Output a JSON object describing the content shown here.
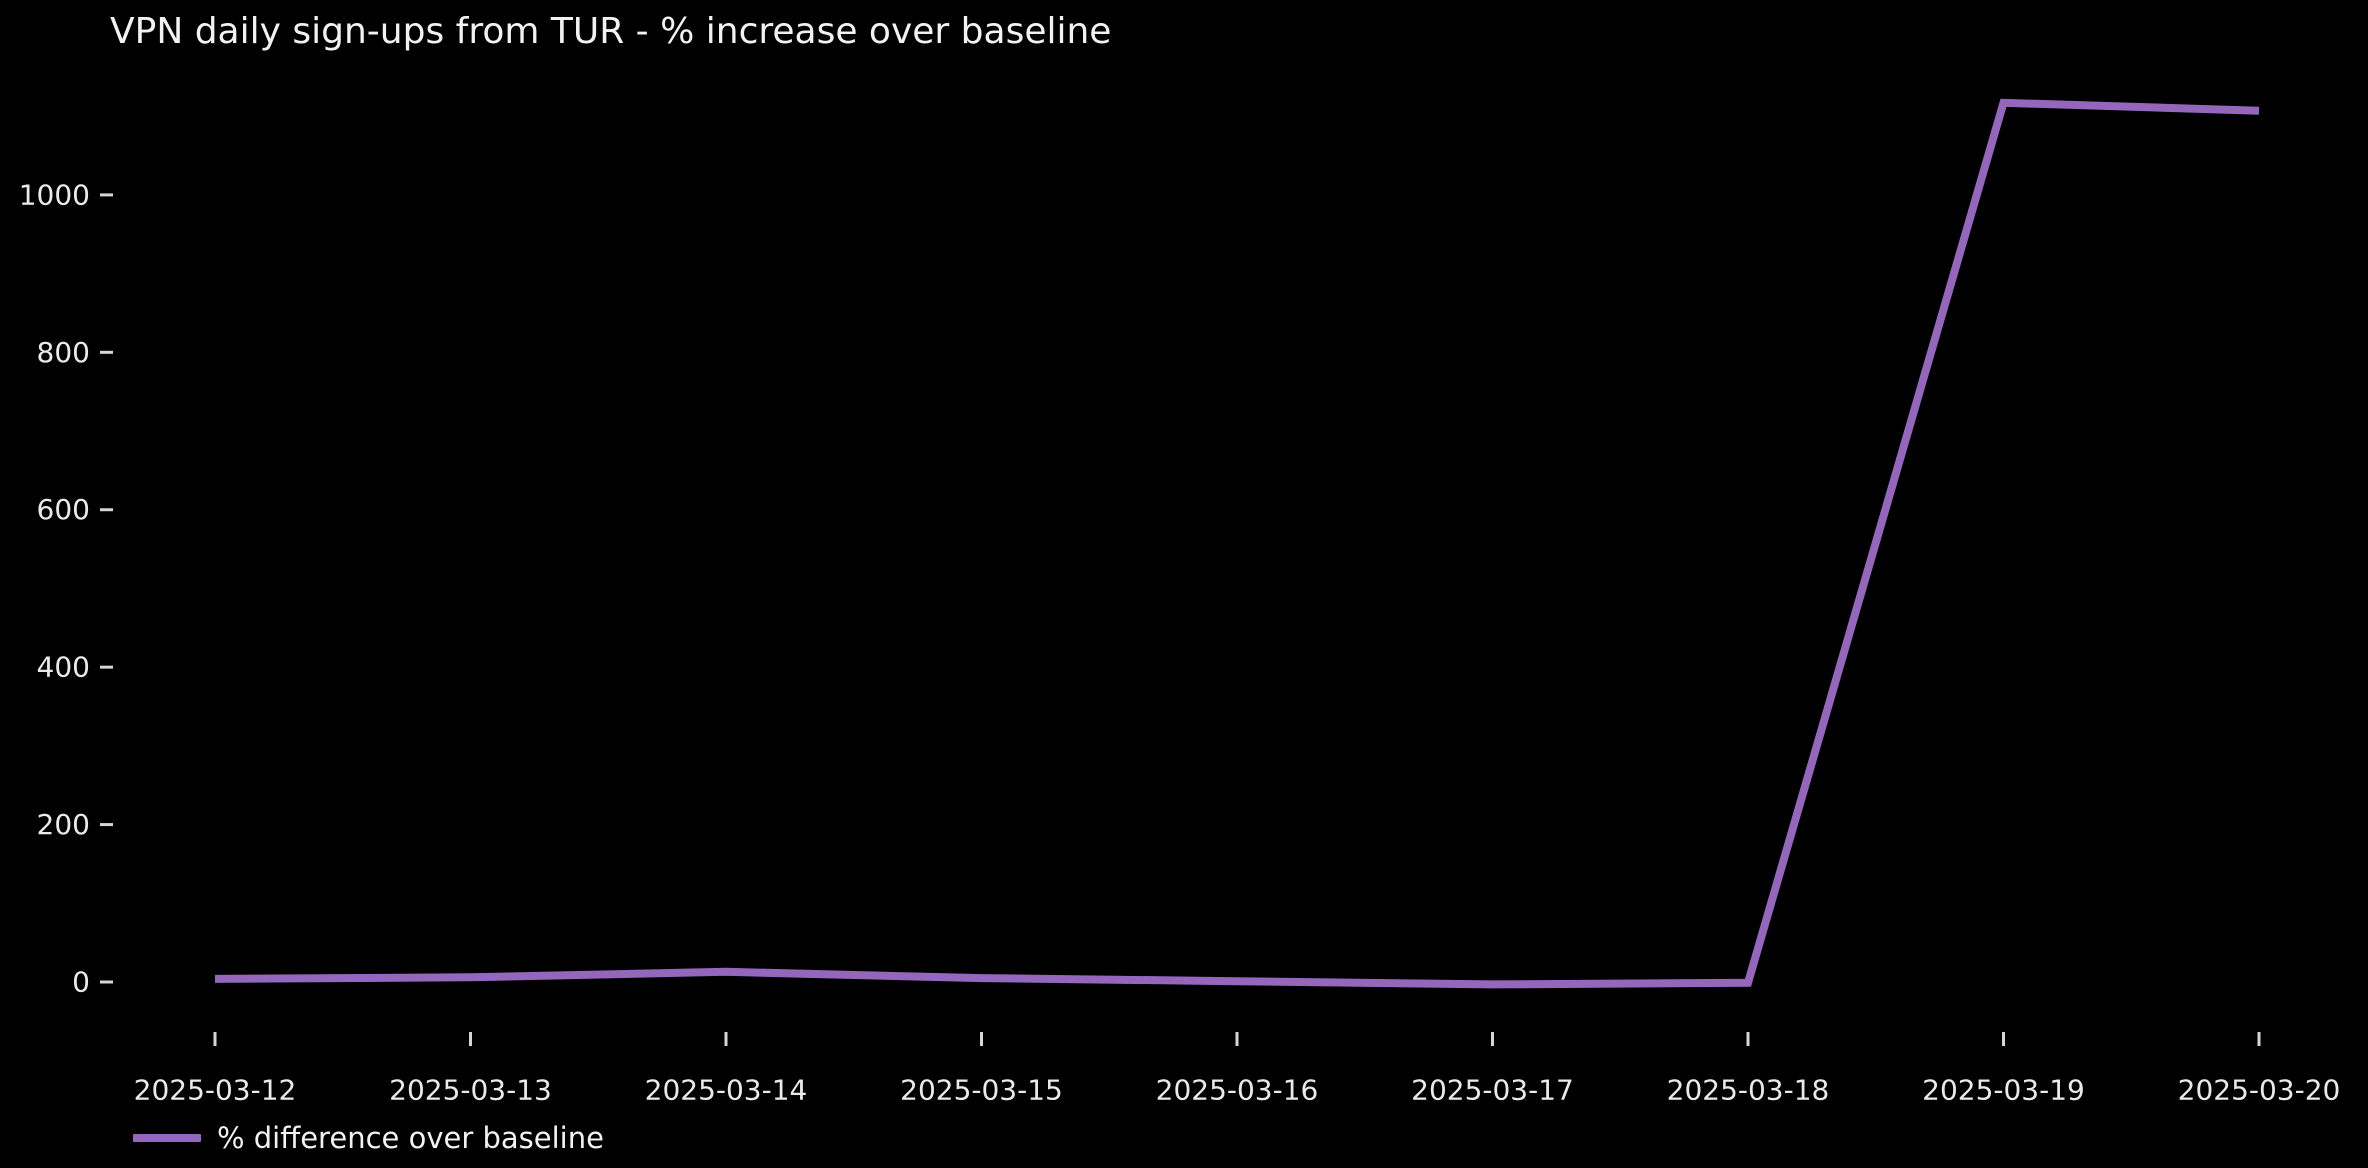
{
  "title": "VPN daily sign-ups from TUR - % increase over baseline",
  "legend": {
    "label": "% difference over baseline"
  },
  "colors": {
    "background": "#000000",
    "text": "#f2f2f2",
    "tick": "#d6d6d6",
    "line": "#9467bd"
  },
  "chart_data": {
    "type": "line",
    "title": "VPN daily sign-ups from TUR - % increase over baseline",
    "x": [
      "2025-03-12",
      "2025-03-13",
      "2025-03-14",
      "2025-03-15",
      "2025-03-16",
      "2025-03-17",
      "2025-03-18",
      "2025-03-19",
      "2025-03-20"
    ],
    "series": [
      {
        "name": "% difference over baseline",
        "color": "#9467bd",
        "values": [
          4,
          6,
          13,
          5,
          1,
          -3,
          -1,
          1117,
          1107
        ]
      }
    ],
    "xlabel": "",
    "ylabel": "",
    "yticks": [
      0,
      200,
      400,
      600,
      800,
      1000
    ],
    "ylim": [
      -60,
      1175
    ],
    "grid": false,
    "legend_position": "lower-left",
    "plot_background": "#000000"
  }
}
